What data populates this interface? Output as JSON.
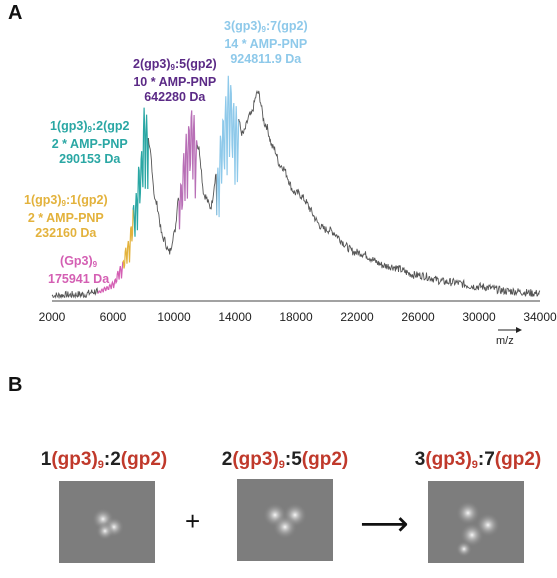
{
  "panel_a": {
    "label": "A",
    "annotations": [
      {
        "id": "gp3_9",
        "color": "#d45fb3",
        "lines": [
          [
            {
              "t": "(Gp3)"
            },
            {
              "t": "9",
              "sub": true
            }
          ],
          [
            {
              "t": "175941 Da"
            }
          ]
        ]
      },
      {
        "id": "1_1",
        "color": "#e3b23c",
        "lines": [
          [
            {
              "t": "1(gp3)"
            },
            {
              "t": "9",
              "sub": true
            },
            {
              "t": ":1(gp2)"
            }
          ],
          [
            {
              "t": "2 * AMP-PNP"
            }
          ],
          [
            {
              "t": "232160 Da"
            }
          ]
        ]
      },
      {
        "id": "1_2",
        "color": "#2aa7a4",
        "lines": [
          [
            {
              "t": "1(gp3)"
            },
            {
              "t": "9",
              "sub": true
            },
            {
              "t": ":2(gp2"
            }
          ],
          [
            {
              "t": "2 * AMP-PNP"
            }
          ],
          [
            {
              "t": "290153 Da"
            }
          ]
        ]
      },
      {
        "id": "2_5",
        "color": "#5b2a86",
        "lines": [
          [
            {
              "t": "2(gp3)"
            },
            {
              "t": "9",
              "sub": true
            },
            {
              "t": ":5(gp2)"
            }
          ],
          [
            {
              "t": "10 * AMP-PNP"
            }
          ],
          [
            {
              "t": "642280 Da"
            }
          ]
        ]
      },
      {
        "id": "3_7",
        "color": "#8ec9ea",
        "lines": [
          [
            {
              "t": "3(gp3)"
            },
            {
              "t": "9",
              "sub": true
            },
            {
              "t": ":7(gp2)"
            }
          ],
          [
            {
              "t": "14 * AMP-PNP"
            }
          ],
          [
            {
              "t": "924811.9 Da"
            }
          ]
        ]
      }
    ],
    "chart_data": {
      "type": "line",
      "xlabel": "m/z",
      "x_ticks": [
        "2000",
        "6000",
        "10000",
        "14000",
        "18000",
        "22000",
        "26000",
        "30000",
        "34000"
      ],
      "xlim": [
        2000,
        34000
      ],
      "peak_clusters": [
        {
          "x_range": [
            5000,
            6600
          ],
          "color": "#d45fb3"
        },
        {
          "x_range": [
            6600,
            7300
          ],
          "color": "#e3b23c"
        },
        {
          "x_range": [
            7300,
            8300
          ],
          "color": "#2aa7a4"
        },
        {
          "x_range": [
            10300,
            11500
          ],
          "color": "#b86fb6"
        },
        {
          "x_range": [
            12800,
            14200
          ],
          "color": "#8ec9ea"
        }
      ],
      "spectrum": {
        "x": [
          2000,
          4000,
          5000,
          5600,
          6000,
          6500,
          7000,
          7400,
          7800,
          8100,
          8400,
          8800,
          9300,
          9700,
          10000,
          10400,
          10800,
          11200,
          11600,
          12000,
          12400,
          12800,
          13200,
          13600,
          14000,
          14500,
          15000,
          15500,
          16000,
          16500,
          17000,
          18000,
          20000,
          22000,
          24000,
          26000,
          28000,
          30000,
          32000,
          34000
        ],
        "y": [
          1,
          1.5,
          3,
          5,
          7,
          14,
          25,
          42,
          62,
          86,
          65,
          42,
          26,
          20,
          28,
          50,
          72,
          84,
          66,
          45,
          40,
          55,
          80,
          98,
          85,
          72,
          80,
          90,
          76,
          66,
          58,
          46,
          30,
          20,
          14,
          10,
          7,
          5,
          3,
          2
        ]
      }
    }
  },
  "panel_b": {
    "label": "B",
    "complexes": [
      {
        "n1": "1",
        "n2": "2"
      },
      {
        "n1": "2",
        "n2": "5"
      },
      {
        "n1": "3",
        "n2": "7"
      }
    ],
    "gp3": "(gp3)",
    "sub": "9",
    "colon": ":",
    "gp2": "(gp2)",
    "plus": "+",
    "arrow": "⟶"
  }
}
